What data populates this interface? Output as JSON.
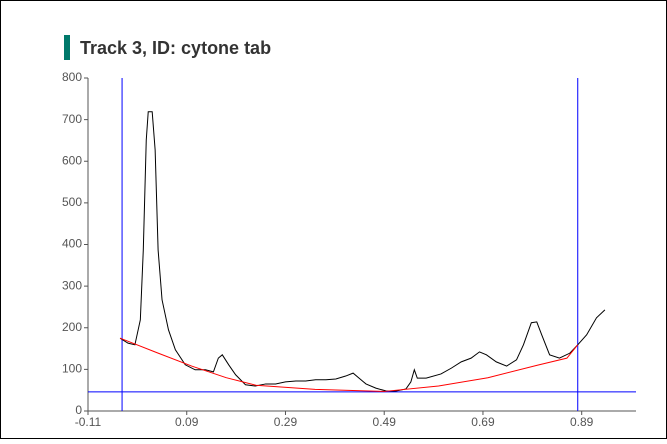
{
  "chart_data": {
    "type": "line",
    "title": "Track 3, ID: cytone tab",
    "xlim": [
      -0.11,
      1.0
    ],
    "xticks": [
      -0.11,
      0.09,
      0.29,
      0.49,
      0.69,
      0.89
    ],
    "ylim": [
      0,
      800
    ],
    "yticks": [
      0,
      100,
      200,
      300,
      400,
      500,
      600,
      700,
      800
    ],
    "series": [
      {
        "color": "#000000",
        "x": [
          -0.045,
          -0.029,
          -0.015,
          -0.004,
          0.002,
          0.008,
          0.012,
          0.02,
          0.026,
          0.032,
          0.04,
          0.053,
          0.067,
          0.087,
          0.107,
          0.128,
          0.144,
          0.154,
          0.162,
          0.175,
          0.189,
          0.209,
          0.229,
          0.25,
          0.27,
          0.29,
          0.311,
          0.331,
          0.351,
          0.372,
          0.392,
          0.412,
          0.427,
          0.439,
          0.453,
          0.473,
          0.494,
          0.514,
          0.534,
          0.544,
          0.551,
          0.557,
          0.575,
          0.605,
          0.626,
          0.646,
          0.666,
          0.683,
          0.697,
          0.717,
          0.738,
          0.758,
          0.772,
          0.788,
          0.799,
          0.809,
          0.825,
          0.845,
          0.866,
          0.882,
          0.9,
          0.92,
          0.937
        ],
        "values": [
          175,
          163,
          159,
          219,
          387,
          651,
          719,
          719,
          627,
          387,
          267,
          195,
          147,
          111,
          99,
          99,
          94,
          127,
          135,
          111,
          87,
          63,
          60,
          65,
          65,
          70,
          72,
          72,
          75,
          75,
          77,
          84,
          91,
          79,
          65,
          55,
          48,
          48,
          53,
          70,
          99,
          79,
          79,
          89,
          103,
          118,
          127,
          142,
          135,
          118,
          108,
          123,
          159,
          212,
          214,
          183,
          135,
          127,
          139,
          159,
          183,
          224,
          243
        ]
      },
      {
        "color": "#ff0000",
        "x": [
          -0.045,
          0.03,
          0.1,
          0.17,
          0.23,
          0.35,
          0.49,
          0.6,
          0.7,
          0.8,
          0.86,
          0.882
        ],
        "values": [
          175,
          140,
          108,
          80,
          62,
          52,
          47,
          60,
          80,
          110,
          127,
          159
        ]
      }
    ],
    "vlines": [
      -0.041,
      0.882
    ],
    "hline": 46,
    "marker_color": "#0000ff",
    "title_bar_color": "#00796b"
  }
}
